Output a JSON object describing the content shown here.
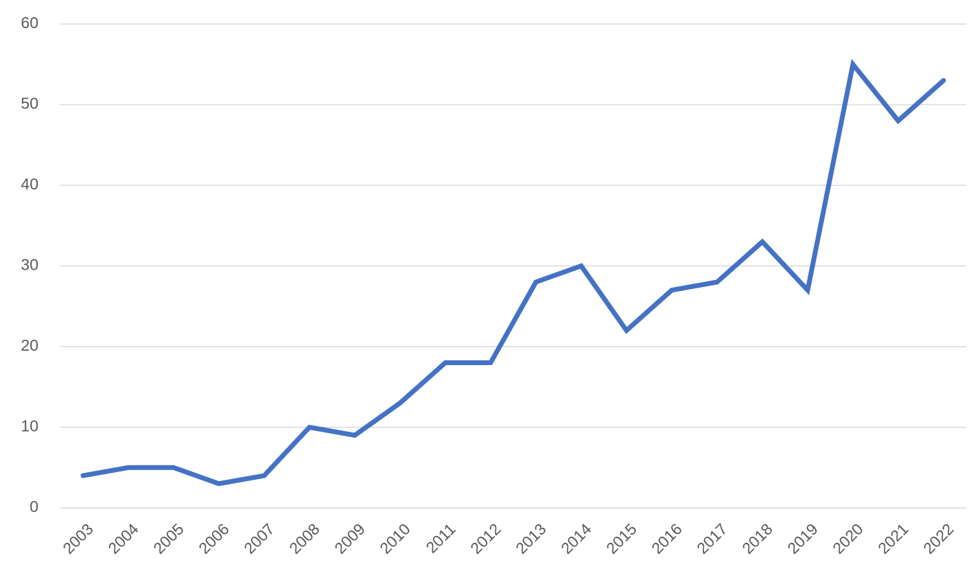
{
  "chart_data": {
    "type": "line",
    "categories": [
      "2003",
      "2004",
      "2005",
      "2006",
      "2007",
      "2008",
      "2009",
      "2010",
      "2011",
      "2012",
      "2013",
      "2014",
      "2015",
      "2016",
      "2017",
      "2018",
      "2019",
      "2020",
      "2021",
      "2022"
    ],
    "values": [
      4,
      5,
      5,
      3,
      4,
      10,
      9,
      13,
      18,
      18,
      28,
      30,
      22,
      27,
      28,
      33,
      27,
      55,
      48,
      53
    ],
    "color": "#4472c4",
    "ylim": [
      0,
      60
    ],
    "yticks": [
      0,
      10,
      20,
      30,
      40,
      50,
      60
    ],
    "grid": true
  }
}
